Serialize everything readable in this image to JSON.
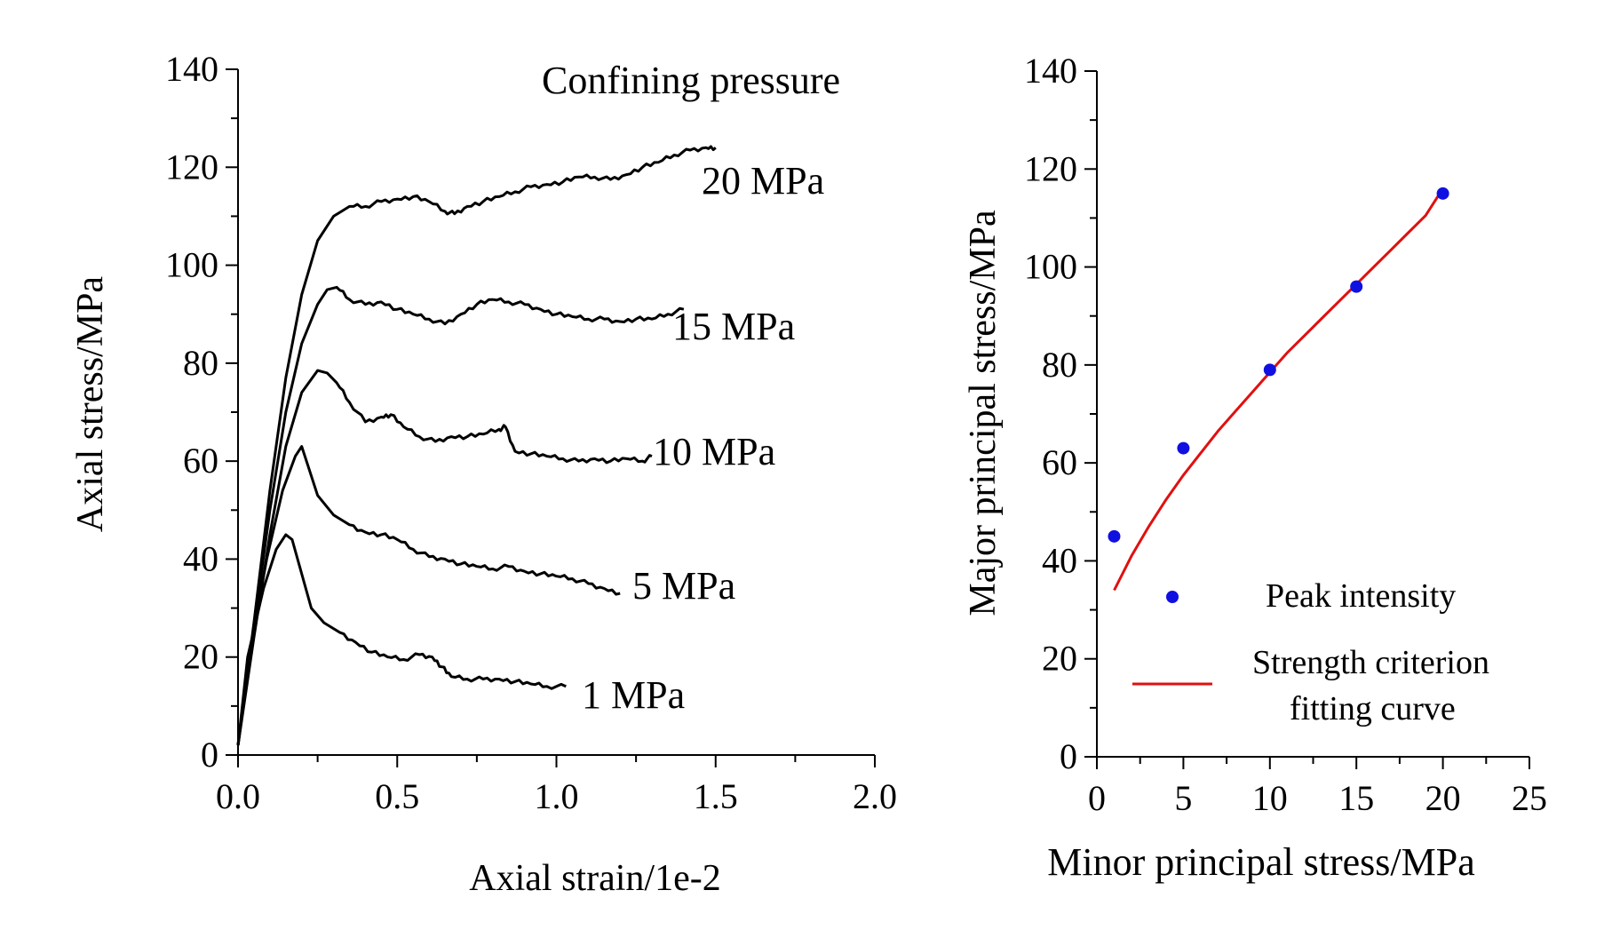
{
  "chart_data": [
    {
      "type": "line",
      "title": "",
      "xlabel": "Axial strain/1e-2",
      "ylabel": "Axial stress/MPa",
      "xlim": [
        0,
        2.0
      ],
      "ylim": [
        0,
        140
      ],
      "xticks": [
        "0.0",
        "0.5",
        "1.0",
        "1.5",
        "2.0"
      ],
      "yticks": [
        "0",
        "20",
        "40",
        "60",
        "80",
        "100",
        "120",
        "140"
      ],
      "legend_title": "Confining pressure",
      "series": [
        {
          "name": "1 MPa",
          "x": [
            0,
            0.03,
            0.08,
            0.12,
            0.15,
            0.17,
            0.2,
            0.23,
            0.27,
            0.32,
            0.37,
            0.42,
            0.47,
            0.52,
            0.57,
            0.61,
            0.64,
            0.67,
            0.72,
            0.77,
            0.82,
            0.87,
            0.92,
            0.97,
            1.03
          ],
          "y": [
            2,
            20,
            34,
            42,
            45,
            44,
            37,
            30,
            27,
            25,
            23,
            21,
            20,
            19.5,
            20.5,
            20,
            18,
            16,
            15.5,
            15.5,
            15.5,
            15,
            14.5,
            14,
            14
          ]
        },
        {
          "name": "5 MPa",
          "x": [
            0,
            0.04,
            0.09,
            0.14,
            0.18,
            0.2,
            0.22,
            0.25,
            0.3,
            0.35,
            0.4,
            0.45,
            0.5,
            0.55,
            0.6,
            0.65,
            0.7,
            0.75,
            0.8,
            0.85,
            0.9,
            0.95,
            1.0,
            1.05,
            1.1,
            1.15,
            1.2
          ],
          "y": [
            2,
            22,
            40,
            54,
            61,
            63,
            59,
            53,
            49,
            47,
            45.5,
            45,
            44,
            42,
            40.5,
            40,
            39,
            38.5,
            38,
            38.5,
            37.5,
            37,
            36.5,
            36,
            35,
            34,
            33
          ]
        },
        {
          "name": "10 MPa",
          "x": [
            0,
            0.05,
            0.1,
            0.15,
            0.2,
            0.25,
            0.28,
            0.31,
            0.35,
            0.4,
            0.45,
            0.48,
            0.52,
            0.57,
            0.62,
            0.67,
            0.72,
            0.77,
            0.82,
            0.84,
            0.87,
            0.92,
            0.97,
            1.02,
            1.07,
            1.12,
            1.17,
            1.22,
            1.27,
            1.3
          ],
          "y": [
            2,
            24,
            45,
            63,
            74,
            78.5,
            78,
            76,
            72,
            68,
            69,
            69.5,
            67,
            65,
            64,
            65,
            65,
            65.5,
            66.5,
            67,
            62,
            61.5,
            61,
            60.5,
            60,
            60.5,
            60,
            60.5,
            60,
            61
          ]
        },
        {
          "name": "15 MPa",
          "x": [
            0,
            0.05,
            0.1,
            0.15,
            0.2,
            0.25,
            0.28,
            0.31,
            0.35,
            0.4,
            0.45,
            0.5,
            0.55,
            0.6,
            0.65,
            0.7,
            0.75,
            0.8,
            0.85,
            0.9,
            0.95,
            1.0,
            1.05,
            1.1,
            1.15,
            1.2,
            1.25,
            1.3,
            1.35,
            1.4
          ],
          "y": [
            2,
            26,
            50,
            70,
            84,
            92,
            95,
            95.5,
            93,
            92,
            92.5,
            91,
            90,
            89,
            88,
            90,
            92,
            93,
            92.5,
            92,
            91,
            90,
            89.5,
            89,
            89,
            88.5,
            89,
            89,
            90,
            91
          ]
        },
        {
          "name": "20 MPa",
          "x": [
            0,
            0.05,
            0.1,
            0.15,
            0.2,
            0.25,
            0.3,
            0.35,
            0.4,
            0.45,
            0.5,
            0.55,
            0.6,
            0.65,
            0.68,
            0.72,
            0.77,
            0.82,
            0.87,
            0.92,
            0.97,
            1.02,
            1.07,
            1.12,
            1.17,
            1.22,
            1.27,
            1.32,
            1.37,
            1.42,
            1.47,
            1.5
          ],
          "y": [
            2,
            27,
            54,
            77,
            94,
            105,
            110,
            112,
            112,
            113,
            113.5,
            114,
            113,
            111,
            110.5,
            112,
            113,
            114,
            115,
            116,
            116.5,
            117,
            118,
            118,
            117.5,
            118.5,
            120,
            121,
            122.5,
            123.5,
            124,
            124
          ]
        }
      ]
    },
    {
      "type": "scatter",
      "title": "",
      "xlabel": "Minor principal stress/MPa",
      "ylabel": "Major principal stress/MPa",
      "xlim": [
        0,
        25
      ],
      "ylim": [
        0,
        140
      ],
      "xticks": [
        "0",
        "5",
        "10",
        "15",
        "20",
        "25"
      ],
      "yticks": [
        "0",
        "20",
        "40",
        "60",
        "80",
        "100",
        "120",
        "140"
      ],
      "series": [
        {
          "name": "Peak intensity",
          "kind": "scatter",
          "x": [
            1,
            5,
            10,
            15,
            20
          ],
          "y": [
            45,
            63,
            79,
            96,
            115
          ]
        },
        {
          "name": "Strength criterion fitting curve",
          "kind": "line",
          "x": [
            1,
            2,
            3,
            4,
            5,
            6,
            7,
            8,
            9,
            10,
            11,
            12,
            13,
            14,
            15,
            16,
            17,
            18,
            19,
            20
          ],
          "y": [
            34,
            41,
            47,
            52.5,
            57.5,
            62,
            66.5,
            70.5,
            74.5,
            78.5,
            82.5,
            86,
            89.5,
            93,
            96.5,
            100,
            103.5,
            107,
            110.5,
            116
          ]
        }
      ],
      "legend_marker_label": "Peak intensity",
      "legend_line_label_1": "Strength criterion",
      "legend_line_label_2": "fitting curve"
    }
  ],
  "colors": {
    "points": "#1010e0",
    "fit": "#e01010",
    "curves": "#000000"
  }
}
